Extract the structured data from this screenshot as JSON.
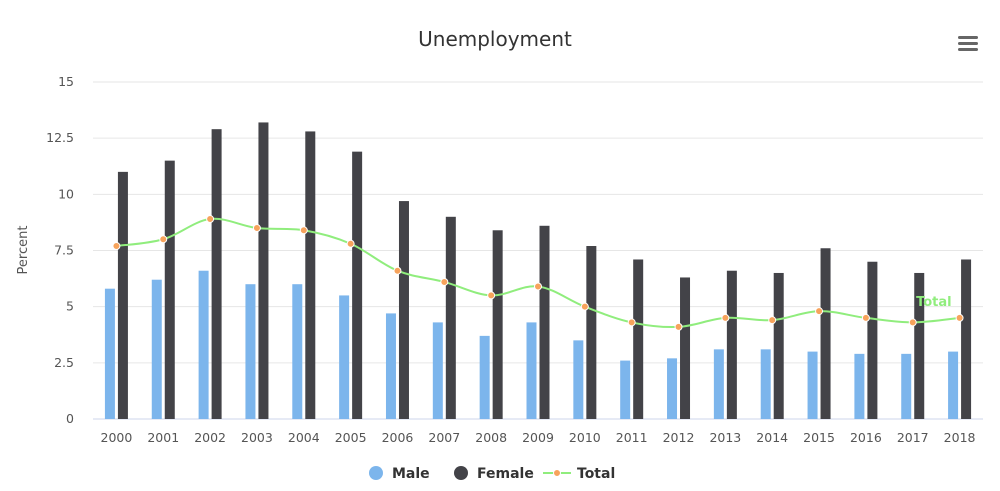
{
  "chart_data": {
    "type": "bar",
    "title": "Unemployment",
    "ylabel": "Percent",
    "xlabel": "",
    "ylim": [
      0,
      15
    ],
    "yticks": [
      0,
      2.5,
      5,
      7.5,
      10,
      12.5,
      15
    ],
    "ytick_labels": [
      "0",
      "2.5",
      "5",
      "7.5",
      "10",
      "12.5",
      "15"
    ],
    "grid": true,
    "legend_position": "bottom-center",
    "categories": [
      "2000",
      "2001",
      "2002",
      "2003",
      "2004",
      "2005",
      "2006",
      "2007",
      "2008",
      "2009",
      "2010",
      "2011",
      "2012",
      "2013",
      "2014",
      "2015",
      "2016",
      "2017",
      "2018"
    ],
    "series": [
      {
        "name": "Male",
        "type": "bar",
        "color": "#7cb5ec",
        "values": [
          5.8,
          6.2,
          6.6,
          6.0,
          6.0,
          5.5,
          4.7,
          4.3,
          3.7,
          4.3,
          3.5,
          2.6,
          2.7,
          3.1,
          3.1,
          3.0,
          2.9,
          2.9,
          3.0
        ]
      },
      {
        "name": "Female",
        "type": "bar",
        "color": "#434348",
        "values": [
          11.0,
          11.5,
          12.9,
          13.2,
          12.8,
          11.9,
          9.7,
          9.0,
          8.4,
          8.6,
          7.7,
          7.1,
          6.3,
          6.6,
          6.5,
          7.6,
          7.0,
          6.5,
          7.1
        ]
      },
      {
        "name": "Total",
        "type": "line",
        "color": "#90ed7d",
        "marker_color": "#f7a35c",
        "values": [
          7.7,
          8.0,
          8.9,
          8.5,
          8.4,
          7.8,
          6.6,
          6.1,
          5.5,
          5.9,
          5.0,
          4.3,
          4.1,
          4.5,
          4.4,
          4.8,
          4.5,
          4.3,
          4.5
        ]
      }
    ],
    "series_label": "Total"
  },
  "ui": {
    "menu_icon": "hamburger-menu-icon"
  }
}
